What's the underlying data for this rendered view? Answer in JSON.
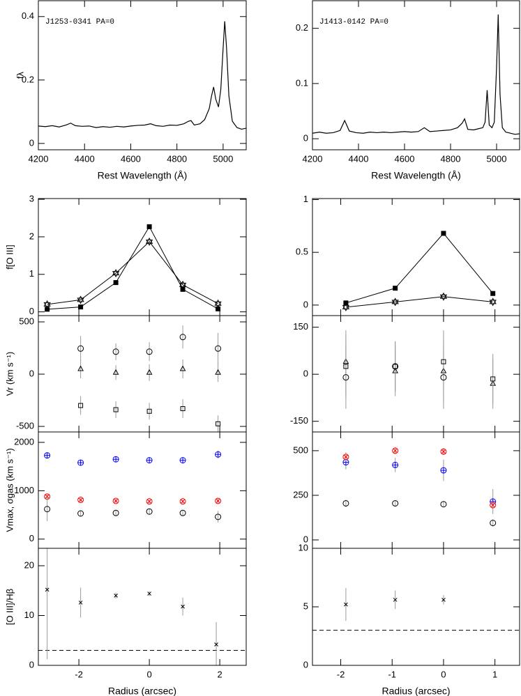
{
  "chart_data": [
    {
      "type": "line",
      "annotation": "J1253-0341 PA=0",
      "ylabel": "fλ",
      "xlabel": "Rest Wavelength (Å)",
      "x": [
        4200,
        4230,
        4260,
        4290,
        4320,
        4340,
        4360,
        4390,
        4420,
        4450,
        4480,
        4510,
        4540,
        4570,
        4600,
        4630,
        4660,
        4686,
        4710,
        4740,
        4770,
        4800,
        4830,
        4850,
        4861,
        4875,
        4900,
        4920,
        4940,
        4950,
        4959,
        4968,
        4980,
        4990,
        5000,
        5007,
        5015,
        5025,
        5040,
        5060,
        5080,
        5100
      ],
      "values": [
        0.055,
        0.053,
        0.056,
        0.052,
        0.058,
        0.064,
        0.056,
        0.054,
        0.055,
        0.05,
        0.053,
        0.051,
        0.054,
        0.052,
        0.055,
        0.057,
        0.058,
        0.062,
        0.056,
        0.054,
        0.058,
        0.057,
        0.062,
        0.07,
        0.072,
        0.058,
        0.062,
        0.075,
        0.11,
        0.15,
        0.178,
        0.14,
        0.115,
        0.17,
        0.3,
        0.385,
        0.3,
        0.15,
        0.07,
        0.05,
        0.045,
        0.048
      ],
      "xlim": [
        4200,
        5100
      ],
      "ylim": [
        -0.02,
        0.45
      ],
      "xticks": [
        4200,
        4400,
        4600,
        4800,
        5000
      ],
      "yticks": [
        0,
        0.2,
        0.4
      ]
    },
    {
      "type": "line",
      "annotation": "J1413-0142 PA=0",
      "xlabel": "Rest Wavelength (Å)",
      "x": [
        4200,
        4230,
        4260,
        4290,
        4320,
        4340,
        4360,
        4390,
        4420,
        4450,
        4480,
        4510,
        4540,
        4570,
        4600,
        4630,
        4660,
        4686,
        4710,
        4740,
        4770,
        4800,
        4830,
        4850,
        4861,
        4875,
        4900,
        4920,
        4940,
        4950,
        4959,
        4968,
        4980,
        4990,
        5000,
        5007,
        5015,
        5025,
        5040,
        5060,
        5080,
        5100
      ],
      "values": [
        0.01,
        0.012,
        0.01,
        0.011,
        0.015,
        0.033,
        0.014,
        0.011,
        0.01,
        0.012,
        0.011,
        0.012,
        0.011,
        0.012,
        0.013,
        0.012,
        0.013,
        0.02,
        0.013,
        0.014,
        0.015,
        0.016,
        0.02,
        0.028,
        0.036,
        0.017,
        0.016,
        0.018,
        0.02,
        0.03,
        0.088,
        0.025,
        0.02,
        0.03,
        0.13,
        0.225,
        0.08,
        0.02,
        0.012,
        0.01,
        0.008,
        0.009
      ],
      "xlim": [
        4200,
        5100
      ],
      "ylim": [
        -0.02,
        0.25
      ],
      "xticks": [
        4200,
        4400,
        4600,
        4800,
        5000
      ],
      "yticks": [
        0,
        0.1,
        0.2
      ]
    },
    {
      "type": "scatter",
      "ylabel": "f[O III]",
      "x": [
        -2.9,
        -1.95,
        -0.95,
        0,
        0.95,
        1.95
      ],
      "xlim": [
        -3.15,
        2.75
      ],
      "ylim": [
        -0.1,
        3.02
      ],
      "yticks": [
        0,
        1,
        2,
        3
      ],
      "series": [
        {
          "marker": "filled-square",
          "color": "#000000",
          "connect": true,
          "values": [
            0.07,
            0.13,
            0.78,
            2.27,
            0.6,
            0.08
          ]
        },
        {
          "marker": "star",
          "color": "#000000",
          "connect": true,
          "values": [
            0.2,
            0.32,
            1.03,
            1.87,
            0.72,
            0.22
          ]
        }
      ]
    },
    {
      "type": "scatter",
      "x": [
        -1.9,
        -0.94,
        0,
        0.96
      ],
      "xlim": [
        -2.55,
        1.48
      ],
      "ylim": [
        -0.1,
        1.01
      ],
      "yticks": [
        0,
        0.5,
        1
      ],
      "series": [
        {
          "marker": "filled-square",
          "color": "#000000",
          "connect": true,
          "values": [
            0.02,
            0.16,
            0.68,
            0.11
          ]
        },
        {
          "marker": "star",
          "color": "#000000",
          "connect": true,
          "values": [
            -0.02,
            0.03,
            0.08,
            0.03
          ]
        }
      ]
    },
    {
      "type": "scatter",
      "ylabel": "Vr (km s⁻¹)",
      "x": [
        -1.95,
        -0.95,
        0,
        0.95,
        1.95
      ],
      "xlim": [
        -3.15,
        2.75
      ],
      "ylim": [
        -553,
        560
      ],
      "yticks": [
        -500,
        0,
        500
      ],
      "series": [
        {
          "marker": "circle",
          "color": "#000000",
          "values": [
            245,
            215,
            215,
            355,
            245
          ],
          "errors": [
            120,
            80,
            90,
            110,
            150
          ]
        },
        {
          "marker": "triangle",
          "color": "#000000",
          "values": [
            50,
            15,
            15,
            50,
            15
          ],
          "errors": [
            90,
            70,
            80,
            90,
            90
          ]
        },
        {
          "marker": "square",
          "color": "#000000",
          "values": [
            -300,
            -340,
            -355,
            -330,
            -475
          ],
          "errors": [
            90,
            80,
            80,
            90,
            80
          ]
        }
      ]
    },
    {
      "type": "scatter",
      "x": [
        -1.9,
        -0.94,
        0,
        0.96
      ],
      "xlim": [
        -2.55,
        1.48
      ],
      "ylim": [
        -184,
        187
      ],
      "yticks": [
        -150,
        0,
        150
      ],
      "series": [
        {
          "marker": "circle",
          "color": "#000000",
          "values": [
            -10,
            25,
            -10,
            null
          ],
          "errors": [
            100,
            80,
            100,
            null
          ]
        },
        {
          "marker": "triangle",
          "color": "#000000",
          "values": [
            40,
            10,
            10,
            -30
          ],
          "errors": [
            100,
            80,
            100,
            80
          ]
        },
        {
          "marker": "square",
          "color": "#000000",
          "values": [
            25,
            25,
            40,
            -15
          ],
          "errors": [
            100,
            80,
            100,
            80
          ]
        }
      ]
    },
    {
      "type": "scatter",
      "ylabel": "Vmax, σgas (km s⁻¹)",
      "x": [
        -2.9,
        -1.95,
        -0.95,
        0,
        0.95,
        1.95
      ],
      "xlim": [
        -3.15,
        2.75
      ],
      "ylim": [
        -190,
        2215
      ],
      "yticks": [
        0,
        1000,
        2000
      ],
      "series": [
        {
          "marker": "circle-plus",
          "color": "#0000ff",
          "values": [
            1730,
            1580,
            1650,
            1630,
            1630,
            1750
          ],
          "errors": [
            60,
            50,
            50,
            50,
            50,
            80
          ]
        },
        {
          "marker": "circle-x",
          "color": "#ff0000",
          "values": [
            880,
            810,
            790,
            780,
            780,
            790
          ],
          "errors": [
            50,
            40,
            40,
            40,
            40,
            50
          ]
        },
        {
          "marker": "circle",
          "color": "#000000",
          "values": [
            620,
            530,
            540,
            570,
            540,
            460
          ],
          "errors": [
            250,
            60,
            60,
            60,
            60,
            120
          ]
        }
      ]
    },
    {
      "type": "scatter",
      "x": [
        -1.9,
        -0.94,
        0,
        0.96
      ],
      "xlim": [
        -2.55,
        1.48
      ],
      "ylim": [
        -47,
        605
      ],
      "yticks": [
        0,
        250,
        500
      ],
      "series": [
        {
          "marker": "circle-plus",
          "color": "#0000ff",
          "values": [
            435,
            420,
            390,
            215
          ],
          "errors": [
            40,
            40,
            60,
            70
          ]
        },
        {
          "marker": "circle-x",
          "color": "#ff0000",
          "values": [
            465,
            500,
            495,
            195
          ],
          "errors": [
            25,
            20,
            20,
            20
          ]
        },
        {
          "marker": "circle",
          "color": "#000000",
          "values": [
            205,
            205,
            200,
            95
          ],
          "errors": [
            20,
            15,
            15,
            20
          ]
        }
      ]
    },
    {
      "type": "scatter",
      "ylabel": "[O III]/Hβ",
      "xlabel": "Radius (arcsec)",
      "x": [
        -2.9,
        -1.95,
        -0.95,
        0,
        0.95,
        1.9
      ],
      "xlim": [
        -3.15,
        2.75
      ],
      "ylim": [
        0,
        23.5
      ],
      "xticks": [
        -2,
        0,
        2
      ],
      "yticks": [
        0,
        10,
        20
      ],
      "hline": 3,
      "series": [
        {
          "marker": "x",
          "color": "#000000",
          "values": [
            15.2,
            12.6,
            14,
            14.4,
            11.8,
            4.2
          ],
          "errors": [
            14,
            3,
            0.6,
            0.5,
            1.8,
            4.5
          ]
        }
      ]
    },
    {
      "type": "scatter",
      "xlabel": "Radius (arcsec)",
      "x": [
        -1.9,
        -0.94,
        0
      ],
      "xlim": [
        -2.55,
        1.48
      ],
      "ylim": [
        0,
        10
      ],
      "xticks": [
        -2,
        -1,
        0,
        1
      ],
      "yticks": [
        0,
        5,
        10
      ],
      "hline": 3,
      "series": [
        {
          "marker": "x",
          "color": "#000000",
          "values": [
            5.2,
            5.6,
            5.6
          ],
          "errors": [
            1.4,
            0.8,
            0.4
          ]
        }
      ]
    }
  ]
}
